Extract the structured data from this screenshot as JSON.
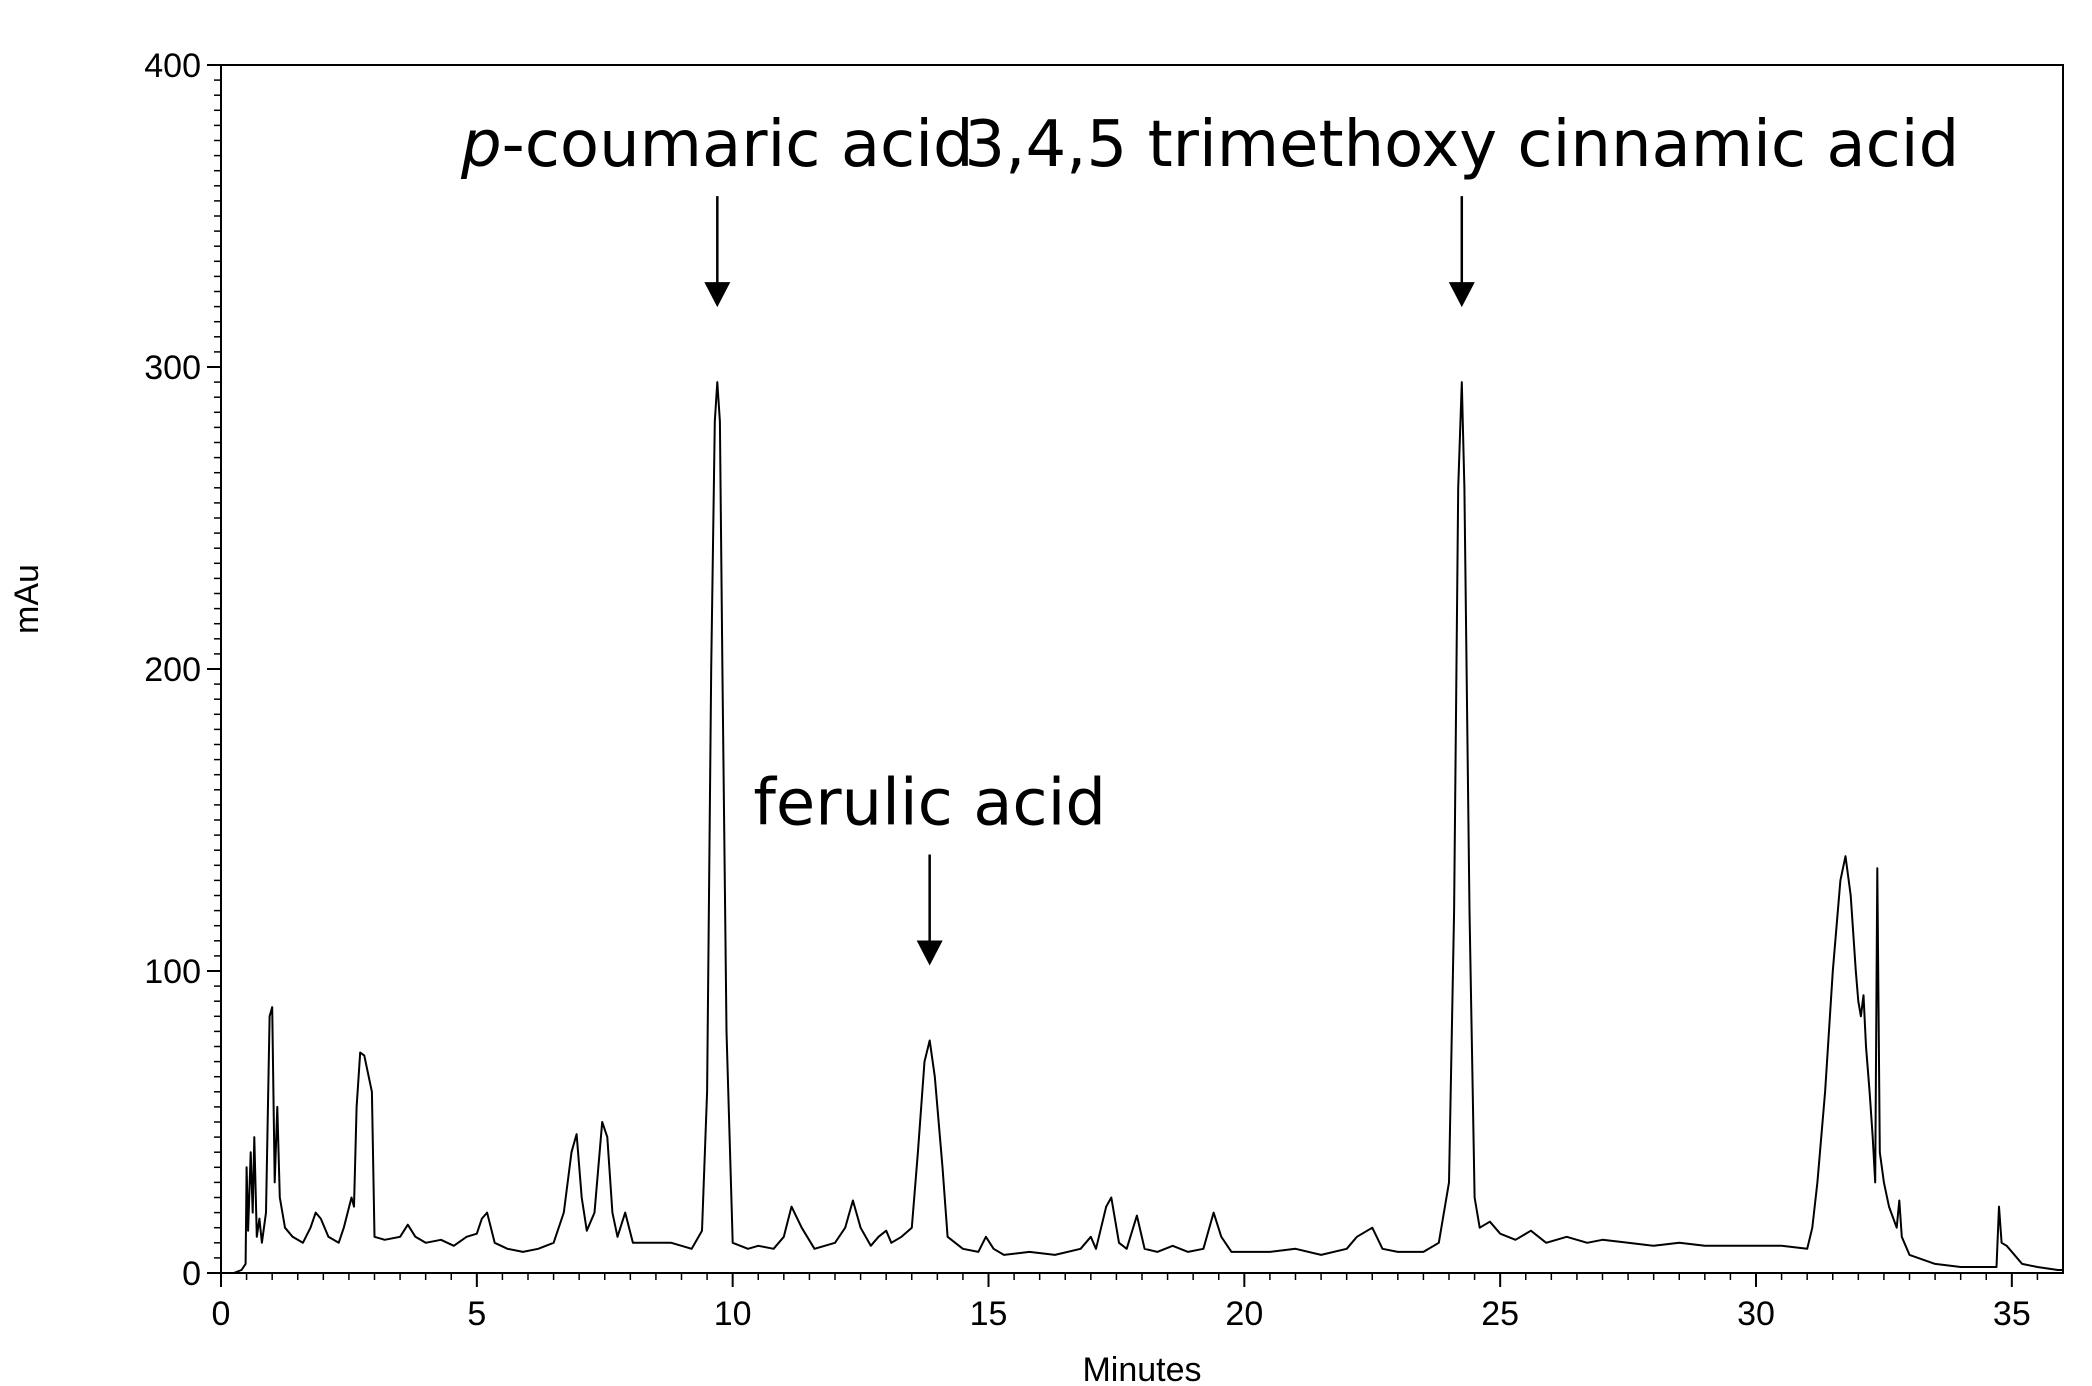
{
  "chart_data": {
    "type": "line",
    "title": "",
    "xlabel": "Minutes",
    "ylabel": "mAu",
    "xlim": [
      0,
      36
    ],
    "ylim": [
      0,
      400
    ],
    "x_ticks": [
      0,
      5,
      10,
      15,
      20,
      25,
      30,
      35
    ],
    "y_ticks": [
      0,
      100,
      200,
      300,
      400
    ],
    "grid": false,
    "legend": "none",
    "line_color": "#000000",
    "series": [
      {
        "points": [
          [
            0,
            0
          ],
          [
            0.25,
            0
          ],
          [
            0.4,
            1
          ],
          [
            0.48,
            3
          ],
          [
            0.5,
            35
          ],
          [
            0.53,
            14
          ],
          [
            0.58,
            40
          ],
          [
            0.62,
            20
          ],
          [
            0.65,
            45
          ],
          [
            0.7,
            12
          ],
          [
            0.75,
            18
          ],
          [
            0.8,
            10
          ],
          [
            0.88,
            20
          ],
          [
            0.95,
            85
          ],
          [
            1.0,
            88
          ],
          [
            1.05,
            30
          ],
          [
            1.1,
            55
          ],
          [
            1.15,
            25
          ],
          [
            1.25,
            15
          ],
          [
            1.4,
            12
          ],
          [
            1.6,
            10
          ],
          [
            1.75,
            15
          ],
          [
            1.85,
            20
          ],
          [
            1.95,
            18
          ],
          [
            2.1,
            12
          ],
          [
            2.3,
            10
          ],
          [
            2.4,
            15
          ],
          [
            2.55,
            25
          ],
          [
            2.6,
            22
          ],
          [
            2.65,
            55
          ],
          [
            2.72,
            73
          ],
          [
            2.8,
            72
          ],
          [
            2.85,
            68
          ],
          [
            2.95,
            60
          ],
          [
            3.0,
            12
          ],
          [
            3.2,
            11
          ],
          [
            3.5,
            12
          ],
          [
            3.65,
            16
          ],
          [
            3.8,
            12
          ],
          [
            4.0,
            10
          ],
          [
            4.3,
            11
          ],
          [
            4.55,
            9
          ],
          [
            4.8,
            12
          ],
          [
            5.0,
            13
          ],
          [
            5.1,
            18
          ],
          [
            5.2,
            20
          ],
          [
            5.35,
            10
          ],
          [
            5.6,
            8
          ],
          [
            5.9,
            7
          ],
          [
            6.2,
            8
          ],
          [
            6.5,
            10
          ],
          [
            6.7,
            20
          ],
          [
            6.85,
            40
          ],
          [
            6.95,
            46
          ],
          [
            7.05,
            25
          ],
          [
            7.15,
            14
          ],
          [
            7.3,
            20
          ],
          [
            7.45,
            50
          ],
          [
            7.55,
            45
          ],
          [
            7.65,
            20
          ],
          [
            7.75,
            12
          ],
          [
            7.9,
            20
          ],
          [
            8.05,
            10
          ],
          [
            8.3,
            10
          ],
          [
            8.8,
            10
          ],
          [
            9.0,
            9
          ],
          [
            9.2,
            8
          ],
          [
            9.4,
            14
          ],
          [
            9.5,
            60
          ],
          [
            9.58,
            200
          ],
          [
            9.65,
            282
          ],
          [
            9.7,
            295
          ],
          [
            9.75,
            282
          ],
          [
            9.8,
            200
          ],
          [
            9.88,
            80
          ],
          [
            10.0,
            10
          ],
          [
            10.3,
            8
          ],
          [
            10.5,
            9
          ],
          [
            10.8,
            8
          ],
          [
            11.0,
            12
          ],
          [
            11.15,
            22
          ],
          [
            11.35,
            15
          ],
          [
            11.6,
            8
          ],
          [
            12.0,
            10
          ],
          [
            12.2,
            15
          ],
          [
            12.35,
            24
          ],
          [
            12.5,
            15
          ],
          [
            12.7,
            9
          ],
          [
            12.85,
            12
          ],
          [
            13.0,
            14
          ],
          [
            13.1,
            10
          ],
          [
            13.3,
            12
          ],
          [
            13.5,
            15
          ],
          [
            13.62,
            40
          ],
          [
            13.75,
            70
          ],
          [
            13.85,
            77
          ],
          [
            13.95,
            65
          ],
          [
            14.1,
            35
          ],
          [
            14.2,
            12
          ],
          [
            14.5,
            8
          ],
          [
            14.8,
            7
          ],
          [
            14.95,
            12
          ],
          [
            15.1,
            8
          ],
          [
            15.3,
            6
          ],
          [
            15.8,
            7
          ],
          [
            16.3,
            6
          ],
          [
            16.8,
            8
          ],
          [
            17.0,
            12
          ],
          [
            17.1,
            8
          ],
          [
            17.3,
            22
          ],
          [
            17.4,
            25
          ],
          [
            17.55,
            10
          ],
          [
            17.7,
            8
          ],
          [
            17.9,
            19
          ],
          [
            18.05,
            8
          ],
          [
            18.3,
            7
          ],
          [
            18.6,
            9
          ],
          [
            18.9,
            7
          ],
          [
            19.2,
            8
          ],
          [
            19.4,
            20
          ],
          [
            19.55,
            12
          ],
          [
            19.75,
            7
          ],
          [
            20.5,
            7
          ],
          [
            21.0,
            8
          ],
          [
            21.5,
            6
          ],
          [
            22.0,
            8
          ],
          [
            22.2,
            12
          ],
          [
            22.5,
            15
          ],
          [
            22.7,
            8
          ],
          [
            23.0,
            7
          ],
          [
            23.5,
            7
          ],
          [
            23.8,
            10
          ],
          [
            24.0,
            30
          ],
          [
            24.1,
            120
          ],
          [
            24.18,
            260
          ],
          [
            24.25,
            295
          ],
          [
            24.3,
            260
          ],
          [
            24.4,
            120
          ],
          [
            24.5,
            25
          ],
          [
            24.6,
            15
          ],
          [
            24.8,
            17
          ],
          [
            25.0,
            13
          ],
          [
            25.3,
            11
          ],
          [
            25.6,
            14
          ],
          [
            25.9,
            10
          ],
          [
            26.3,
            12
          ],
          [
            26.7,
            10
          ],
          [
            27.0,
            11
          ],
          [
            27.5,
            10
          ],
          [
            28.0,
            9
          ],
          [
            28.5,
            10
          ],
          [
            29.0,
            9
          ],
          [
            29.5,
            9
          ],
          [
            30.5,
            9
          ],
          [
            31.0,
            8
          ],
          [
            31.1,
            15
          ],
          [
            31.2,
            30
          ],
          [
            31.35,
            60
          ],
          [
            31.5,
            100
          ],
          [
            31.65,
            130
          ],
          [
            31.75,
            138
          ],
          [
            31.85,
            125
          ],
          [
            31.95,
            100
          ],
          [
            32.0,
            90
          ],
          [
            32.05,
            85
          ],
          [
            32.1,
            92
          ],
          [
            32.15,
            75
          ],
          [
            32.22,
            60
          ],
          [
            32.28,
            45
          ],
          [
            32.33,
            30
          ],
          [
            32.37,
            134
          ],
          [
            32.42,
            40
          ],
          [
            32.5,
            30
          ],
          [
            32.6,
            22
          ],
          [
            32.75,
            15
          ],
          [
            32.8,
            24
          ],
          [
            32.85,
            12
          ],
          [
            33.0,
            6
          ],
          [
            33.5,
            3
          ],
          [
            34.0,
            2
          ],
          [
            34.5,
            2
          ],
          [
            34.7,
            2
          ],
          [
            34.75,
            22
          ],
          [
            34.8,
            10
          ],
          [
            34.9,
            9
          ],
          [
            35.2,
            3
          ],
          [
            35.5,
            2
          ],
          [
            35.9,
            1
          ],
          [
            36.0,
            1
          ]
        ]
      }
    ],
    "annotations": [
      {
        "prefix": "p",
        "text": "-coumaric acid",
        "x": 9.7,
        "y": 295
      },
      {
        "prefix": "",
        "text": "ferulic acid",
        "x": 13.85,
        "y": 77
      },
      {
        "prefix": "",
        "text": "3,4,5 trimethoxy cinnamic acid",
        "x": 24.25,
        "y": 295
      }
    ]
  }
}
